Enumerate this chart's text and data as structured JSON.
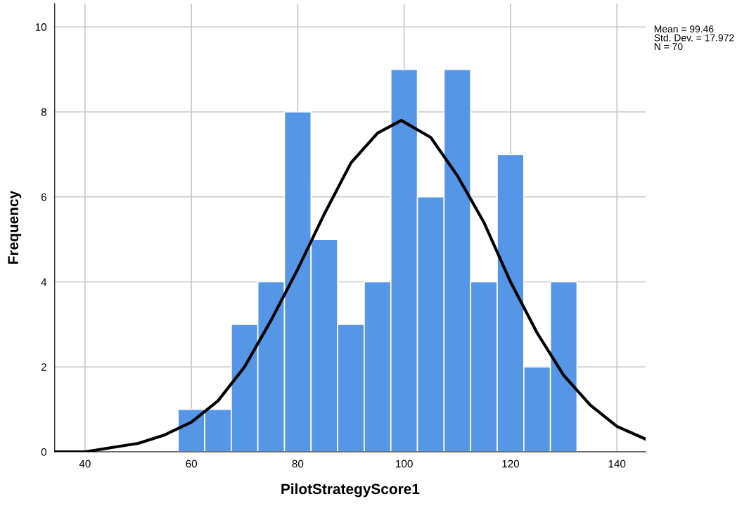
{
  "chart_data": {
    "type": "histogram",
    "xlabel": "PilotStrategyScore1",
    "ylabel": "Frequency",
    "bins": [
      57.5,
      62.5,
      67.5,
      72.5,
      77.5,
      82.5,
      87.5,
      92.5,
      97.5,
      102.5,
      107.5,
      112.5,
      117.5,
      122.5,
      127.5,
      132.5
    ],
    "values": [
      1,
      1,
      3,
      4,
      8,
      5,
      3,
      4,
      9,
      6,
      9,
      4,
      7,
      2,
      4
    ],
    "color": "#5596e6",
    "series": [
      {
        "type": "line",
        "color": "#000000",
        "x": [
          34.3,
          40,
          45,
          50,
          55,
          60,
          65,
          70,
          75,
          80,
          85,
          90,
          95,
          99.46,
          105,
          110,
          115,
          120,
          125,
          130,
          135,
          140,
          145.4
        ],
        "values": [
          0.0,
          0.0,
          0.1,
          0.2,
          0.4,
          0.7,
          1.2,
          2.0,
          3.1,
          4.3,
          5.6,
          6.8,
          7.5,
          7.8,
          7.4,
          6.5,
          5.4,
          4.0,
          2.8,
          1.8,
          1.1,
          0.6,
          0.3
        ]
      }
    ],
    "xlim": [
      34.3,
      145.4
    ],
    "xticks": [
      40,
      60,
      80,
      100,
      120,
      140
    ],
    "ylim": [
      0,
      10.55
    ],
    "yticks": [
      0,
      2,
      4,
      6,
      8,
      10
    ],
    "grid": true,
    "legend": false,
    "marker": "none",
    "line_style": "solid",
    "annotations": [
      "Mean = 99.46\nStd. Dev. = 17.972\nN = 70"
    ]
  }
}
